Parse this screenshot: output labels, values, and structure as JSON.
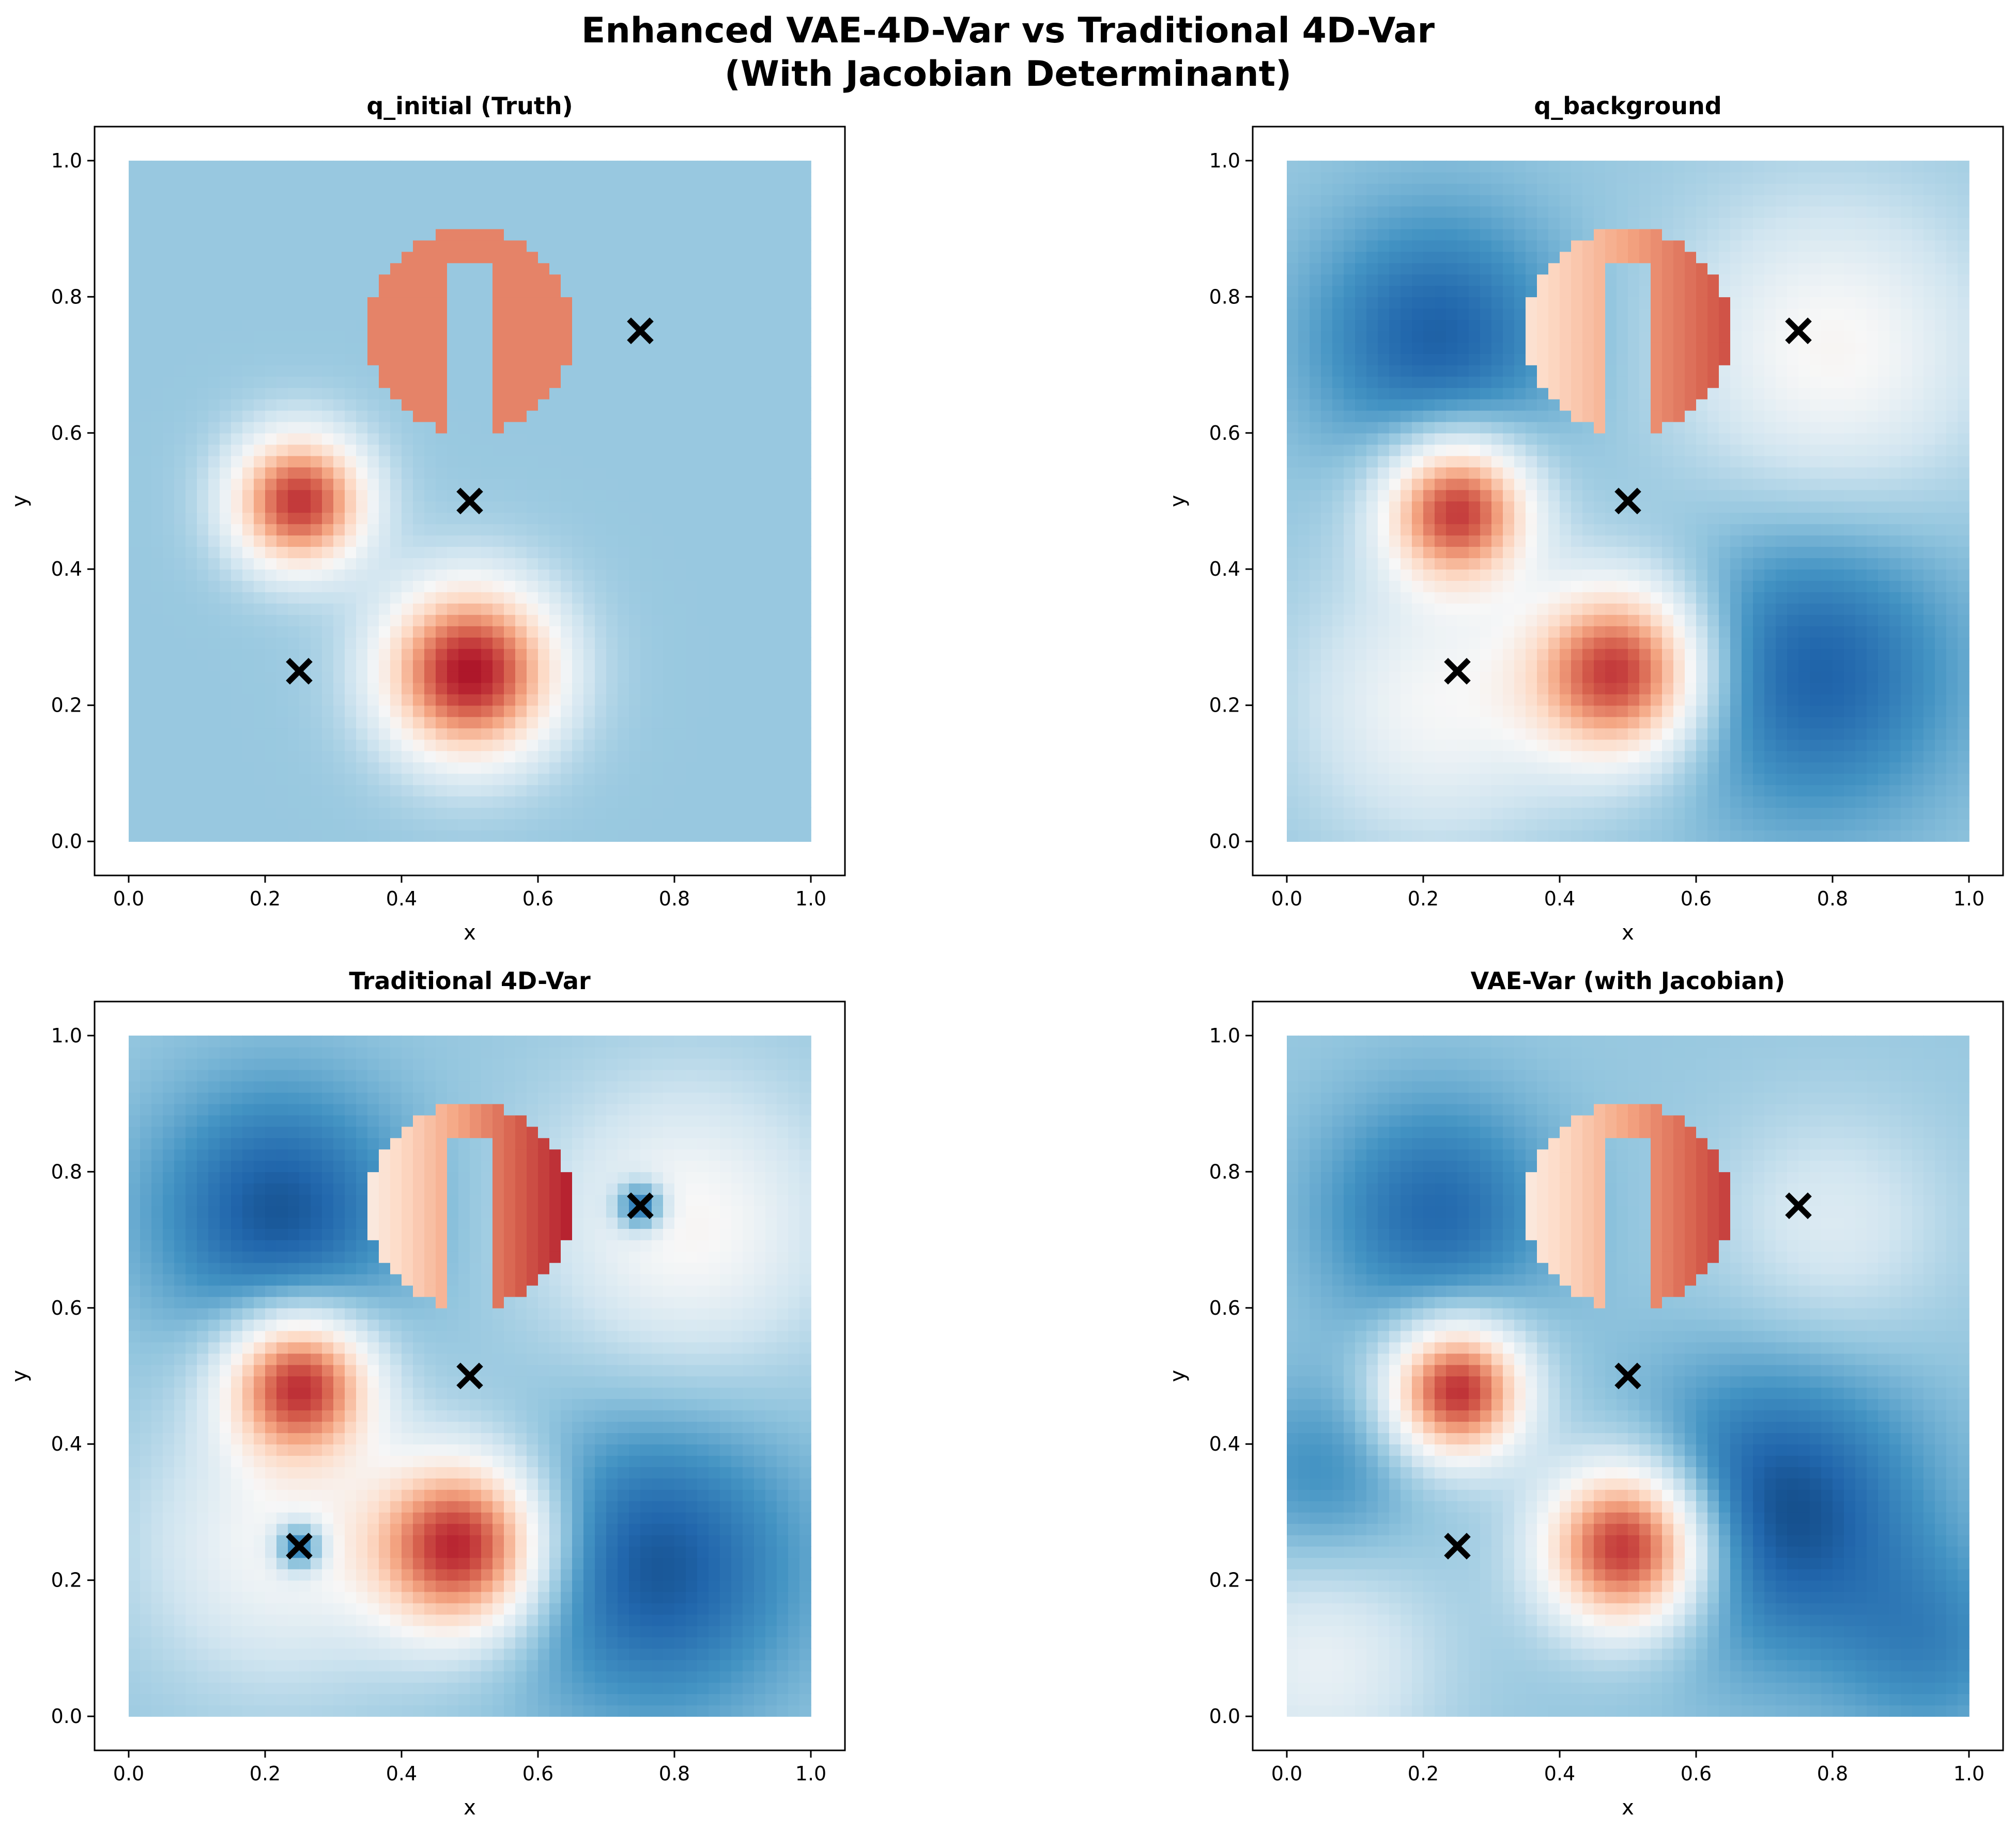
{
  "figure": {
    "title_line1": "Enhanced VAE-4D-Var vs Traditional 4D-Var",
    "title_line2": "(With Jacobian Determinant)"
  },
  "colors": {
    "colormap": "RdBu_r",
    "marker": "#000000",
    "axes": "#000000"
  },
  "chart_data": [
    {
      "type": "heatmap",
      "title": "q_initial (Truth)",
      "xlabel": "x",
      "ylabel": "y",
      "xlim": [
        -0.05,
        1.05
      ],
      "ylim": [
        -0.05,
        1.05
      ],
      "xticks": [
        "0.0",
        "0.2",
        "0.4",
        "0.6",
        "0.8",
        "1.0"
      ],
      "yticks": [
        "0.0",
        "0.2",
        "0.4",
        "0.6",
        "0.8",
        "1.0"
      ],
      "field": {
        "background": 0.0,
        "slotted_cylinder": {
          "center": [
            0.5,
            0.75
          ],
          "radius": 0.15,
          "slot_x": [
            0.475,
            0.525
          ],
          "slot_top": 0.85,
          "value": 0.75
        },
        "gaussian_bumps": [
          {
            "center": [
              0.25,
              0.5
            ],
            "sigma": 0.07,
            "amplitude": 0.55
          },
          {
            "center": [
              0.5,
              0.25
            ],
            "sigma": 0.09,
            "amplitude": 0.6
          }
        ],
        "smooth_anomalies": []
      },
      "observations": [
        [
          0.25,
          0.25
        ],
        [
          0.5,
          0.5
        ],
        [
          0.75,
          0.75
        ]
      ]
    },
    {
      "type": "heatmap",
      "title": "q_background",
      "xlabel": "x",
      "ylabel": "y",
      "xlim": [
        -0.05,
        1.05
      ],
      "ylim": [
        -0.05,
        1.05
      ],
      "xticks": [
        "0.0",
        "0.2",
        "0.4",
        "0.6",
        "0.8",
        "1.0"
      ],
      "yticks": [
        "0.0",
        "0.2",
        "0.4",
        "0.6",
        "0.8",
        "1.0"
      ],
      "field": {
        "background": 0.0,
        "slotted_cylinder": {
          "center": [
            0.5,
            0.75
          ],
          "radius": 0.15,
          "slot_x": [
            0.475,
            0.525
          ],
          "slot_top": 0.85,
          "value": 0.7,
          "gradient": 0.25
        },
        "gaussian_bumps": [
          {
            "center": [
              0.25,
              0.49
            ],
            "sigma": 0.075,
            "amplitude": 0.55
          },
          {
            "center": [
              0.49,
              0.25
            ],
            "sigma": 0.09,
            "amplitude": 0.55
          }
        ],
        "smooth_anomalies": [
          {
            "center": [
              0.22,
              0.74
            ],
            "sigma": 0.13,
            "amplitude": -0.22
          },
          {
            "center": [
              0.77,
              0.25
            ],
            "sigma": 0.15,
            "amplitude": -0.22
          },
          {
            "center": [
              0.8,
              0.72
            ],
            "sigma": 0.16,
            "amplitude": 0.2
          },
          {
            "center": [
              0.22,
              0.2
            ],
            "sigma": 0.14,
            "amplitude": 0.18
          }
        ]
      },
      "observations": [
        [
          0.25,
          0.25
        ],
        [
          0.5,
          0.5
        ],
        [
          0.75,
          0.75
        ]
      ]
    },
    {
      "type": "heatmap",
      "title": "Traditional 4D-Var",
      "xlabel": "x",
      "ylabel": "y",
      "xlim": [
        -0.05,
        1.05
      ],
      "ylim": [
        -0.05,
        1.05
      ],
      "xticks": [
        "0.0",
        "0.2",
        "0.4",
        "0.6",
        "0.8",
        "1.0"
      ],
      "yticks": [
        "0.0",
        "0.2",
        "0.4",
        "0.6",
        "0.8",
        "1.0"
      ],
      "field": {
        "background": 0.0,
        "slotted_cylinder": {
          "center": [
            0.5,
            0.75
          ],
          "radius": 0.15,
          "slot_x": [
            0.475,
            0.525
          ],
          "slot_top": 0.85,
          "value": 0.72,
          "gradient": 0.35
        },
        "gaussian_bumps": [
          {
            "center": [
              0.25,
              0.49
            ],
            "sigma": 0.075,
            "amplitude": 0.55
          },
          {
            "center": [
              0.49,
              0.25
            ],
            "sigma": 0.09,
            "amplitude": 0.58
          }
        ],
        "smooth_anomalies": [
          {
            "center": [
              0.22,
              0.74
            ],
            "sigma": 0.13,
            "amplitude": -0.24
          },
          {
            "center": [
              0.77,
              0.22
            ],
            "sigma": 0.15,
            "amplitude": -0.24
          },
          {
            "center": [
              0.82,
              0.72
            ],
            "sigma": 0.15,
            "amplitude": 0.2
          },
          {
            "center": [
              0.22,
              0.25
            ],
            "sigma": 0.14,
            "amplitude": 0.18
          },
          {
            "center": [
              0.75,
              0.75
            ],
            "sigma": 0.025,
            "amplitude": -0.35
          },
          {
            "center": [
              0.25,
              0.25
            ],
            "sigma": 0.025,
            "amplitude": -0.35
          }
        ]
      },
      "observations": [
        [
          0.25,
          0.25
        ],
        [
          0.5,
          0.5
        ],
        [
          0.75,
          0.75
        ]
      ]
    },
    {
      "type": "heatmap",
      "title": "VAE-Var (with Jacobian)",
      "xlabel": "x",
      "ylabel": "y",
      "xlim": [
        -0.05,
        1.05
      ],
      "ylim": [
        -0.05,
        1.05
      ],
      "xticks": [
        "0.0",
        "0.2",
        "0.4",
        "0.6",
        "0.8",
        "1.0"
      ],
      "yticks": [
        "0.0",
        "0.2",
        "0.4",
        "0.6",
        "0.8",
        "1.0"
      ],
      "field": {
        "background": 0.0,
        "slotted_cylinder": {
          "center": [
            0.5,
            0.75
          ],
          "radius": 0.15,
          "slot_x": [
            0.475,
            0.525
          ],
          "slot_top": 0.85,
          "value": 0.7,
          "gradient": 0.3
        },
        "gaussian_bumps": [
          {
            "center": [
              0.25,
              0.48
            ],
            "sigma": 0.07,
            "amplitude": 0.58
          },
          {
            "center": [
              0.5,
              0.25
            ],
            "sigma": 0.085,
            "amplitude": 0.62
          }
        ],
        "smooth_anomalies": [
          {
            "center": [
              0.22,
              0.74
            ],
            "sigma": 0.12,
            "amplitude": -0.2
          },
          {
            "center": [
              0.72,
              0.3
            ],
            "sigma": 0.15,
            "amplitude": -0.26
          },
          {
            "center": [
              0.05,
              0.35
            ],
            "sigma": 0.1,
            "amplitude": -0.12
          },
          {
            "center": [
              0.05,
              0.08
            ],
            "sigma": 0.12,
            "amplitude": 0.15
          },
          {
            "center": [
              0.8,
              0.72
            ],
            "sigma": 0.12,
            "amplitude": 0.12
          },
          {
            "center": [
              0.95,
              0.1
            ],
            "sigma": 0.1,
            "amplitude": -0.12
          }
        ]
      },
      "observations": [
        [
          0.25,
          0.25
        ],
        [
          0.5,
          0.5
        ],
        [
          0.75,
          0.75
        ]
      ]
    }
  ]
}
